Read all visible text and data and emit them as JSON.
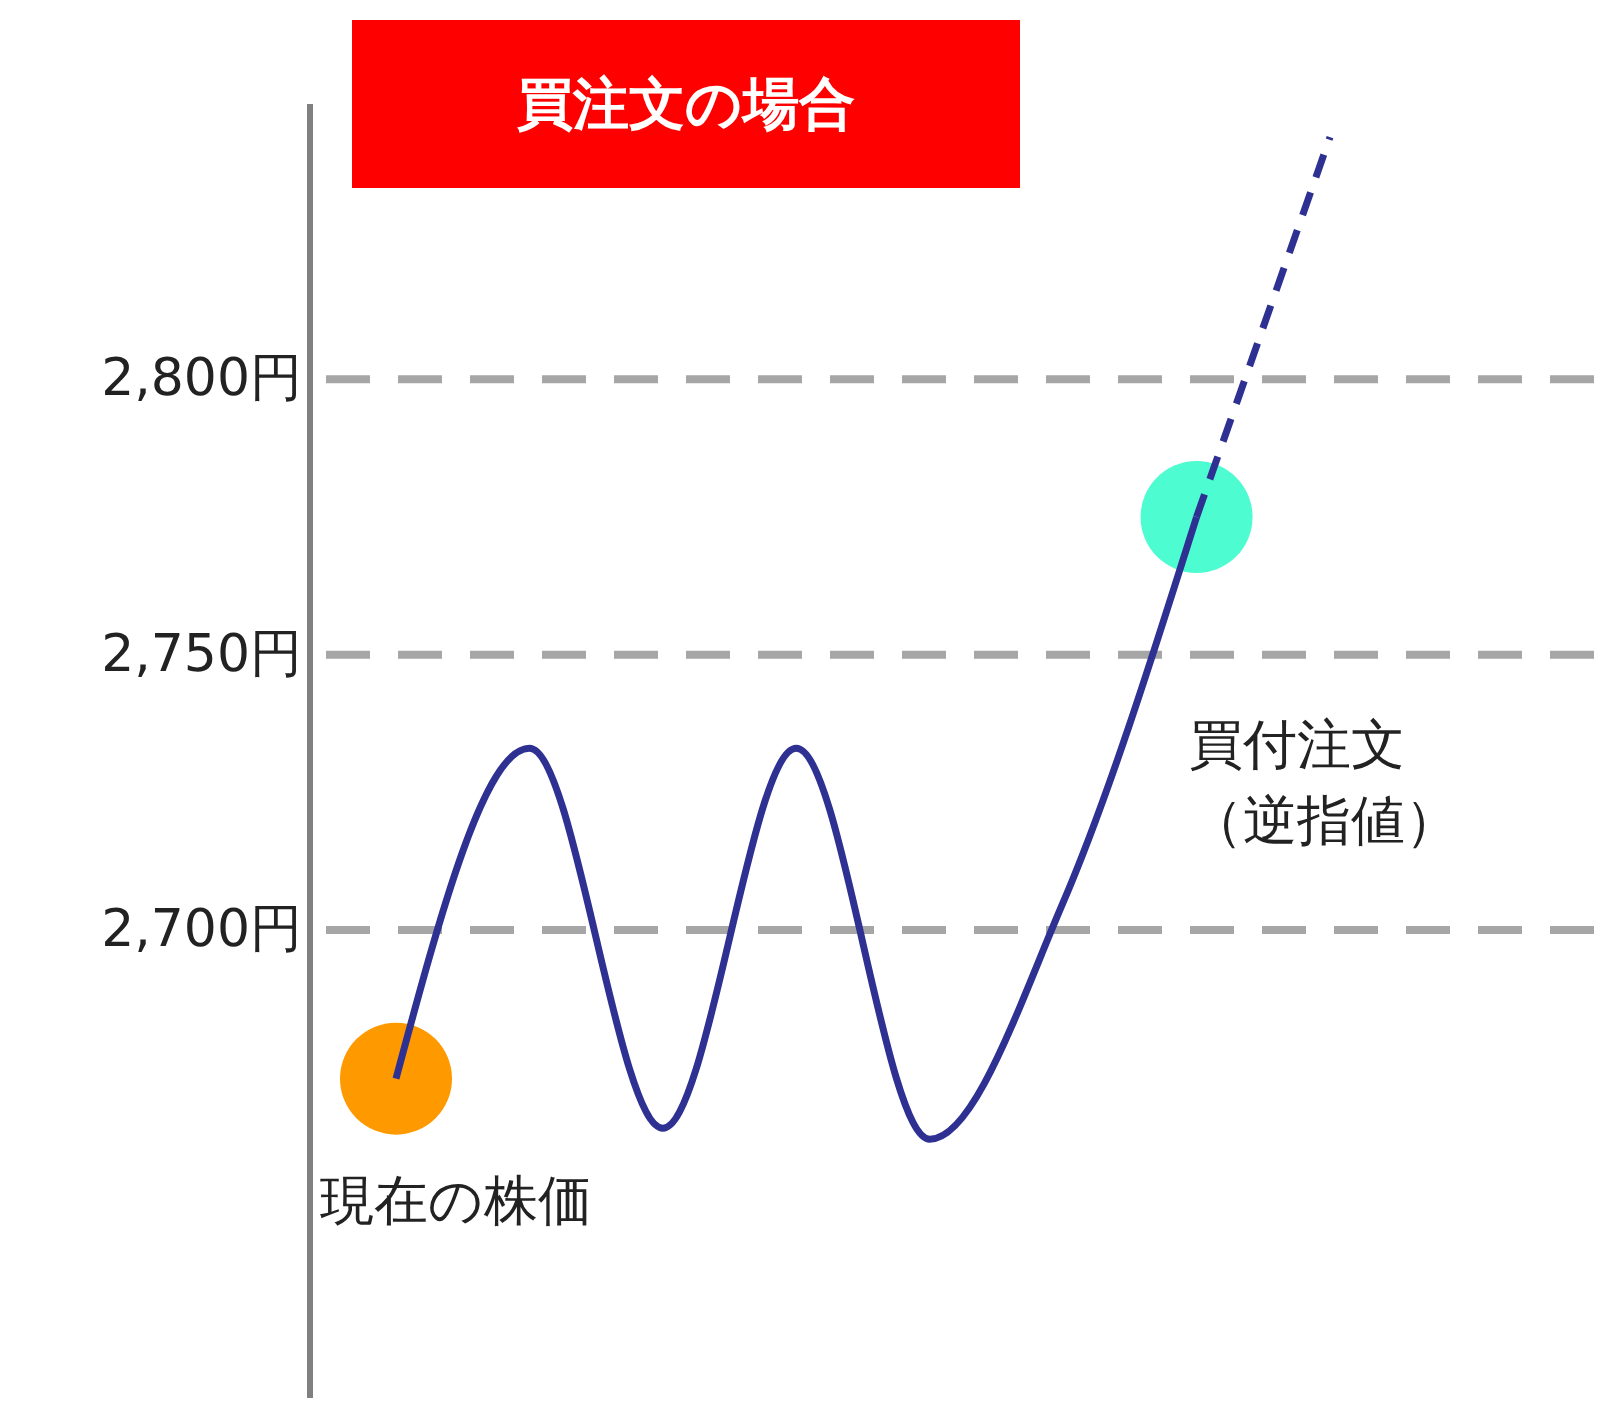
{
  "chart_data": {
    "type": "line",
    "title": "買注文の場合",
    "categories": [
      null,
      null,
      null,
      null,
      null,
      null,
      null,
      null
    ],
    "ylim": [
      2615,
      2850
    ],
    "yticks": [
      {
        "value": 2700,
        "label": "2,700円"
      },
      {
        "value": 2750,
        "label": "2,750円"
      },
      {
        "value": 2800,
        "label": "2,800円"
      }
    ],
    "tick_labels": "y",
    "grid": "y",
    "series": [
      {
        "type": "line",
        "color": "#2e3192",
        "line_style": "solid",
        "values": [
          2673,
          2733,
          2664,
          2733,
          2662,
          2705,
          2775,
          null
        ]
      },
      {
        "type": "line",
        "color": "#2e3192",
        "line_style": "dashed",
        "values": [
          null,
          null,
          null,
          null,
          null,
          null,
          2775,
          2844
        ]
      },
      {
        "type": "scatter",
        "color": "#ff9900",
        "marker": "circle",
        "values": [
          2673,
          null,
          null,
          null,
          null,
          null,
          null,
          null
        ]
      },
      {
        "type": "scatter",
        "color": "#4dfcd0",
        "marker": "circle",
        "values": [
          null,
          null,
          null,
          null,
          null,
          null,
          2775,
          null
        ]
      }
    ],
    "annotations": [
      "現在の株価",
      "買付注文（逆指値）"
    ]
  }
}
